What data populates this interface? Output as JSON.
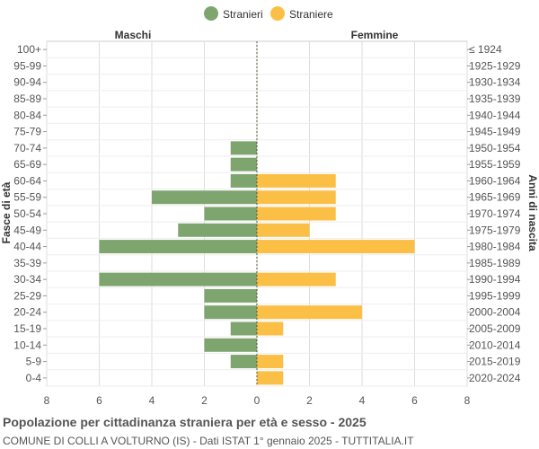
{
  "chart_data": {
    "type": "bar",
    "orientation": "horizontal-pyramid",
    "title": "Popolazione per cittadinanza straniera per età e sesso - 2025",
    "subtitle": "COMUNE DI COLLI A VOLTURNO (IS) - Dati ISTAT 1° gennaio 2025 - TUTTITALIA.IT",
    "legend": [
      "Stranieri",
      "Straniere"
    ],
    "legend_position": "top-center",
    "left_header": "Maschi",
    "right_header": "Femmine",
    "ylabel_left": "Fasce di età",
    "ylabel_right": "Anni di nascita",
    "xlim": [
      -8,
      8
    ],
    "x_ticks": [
      "8",
      "6",
      "4",
      "2",
      "0",
      "2",
      "4",
      "6",
      "8"
    ],
    "grid": true,
    "colors": {
      "male": "#7fa56f",
      "female": "#fbbf46"
    },
    "age_groups": [
      "100+",
      "95-99",
      "90-94",
      "85-89",
      "80-84",
      "75-79",
      "70-74",
      "65-69",
      "60-64",
      "55-59",
      "50-54",
      "45-49",
      "40-44",
      "35-39",
      "30-34",
      "25-29",
      "20-24",
      "15-19",
      "10-14",
      "5-9",
      "0-4"
    ],
    "birth_years": [
      "≤ 1924",
      "1925-1929",
      "1930-1934",
      "1935-1939",
      "1940-1944",
      "1945-1949",
      "1950-1954",
      "1955-1959",
      "1960-1964",
      "1965-1969",
      "1970-1974",
      "1975-1979",
      "1980-1984",
      "1985-1989",
      "1990-1994",
      "1995-1999",
      "2000-2004",
      "2005-2009",
      "2010-2014",
      "2015-2019",
      "2020-2024"
    ],
    "series": [
      {
        "name": "Stranieri",
        "values": [
          0,
          0,
          0,
          0,
          0,
          0,
          1,
          1,
          1,
          4,
          2,
          3,
          6,
          0,
          6,
          2,
          2,
          1,
          2,
          1,
          0
        ]
      },
      {
        "name": "Straniere",
        "values": [
          0,
          0,
          0,
          0,
          0,
          0,
          0,
          0,
          3,
          3,
          3,
          2,
          6,
          0,
          3,
          0,
          4,
          1,
          0,
          1,
          1
        ]
      }
    ]
  }
}
